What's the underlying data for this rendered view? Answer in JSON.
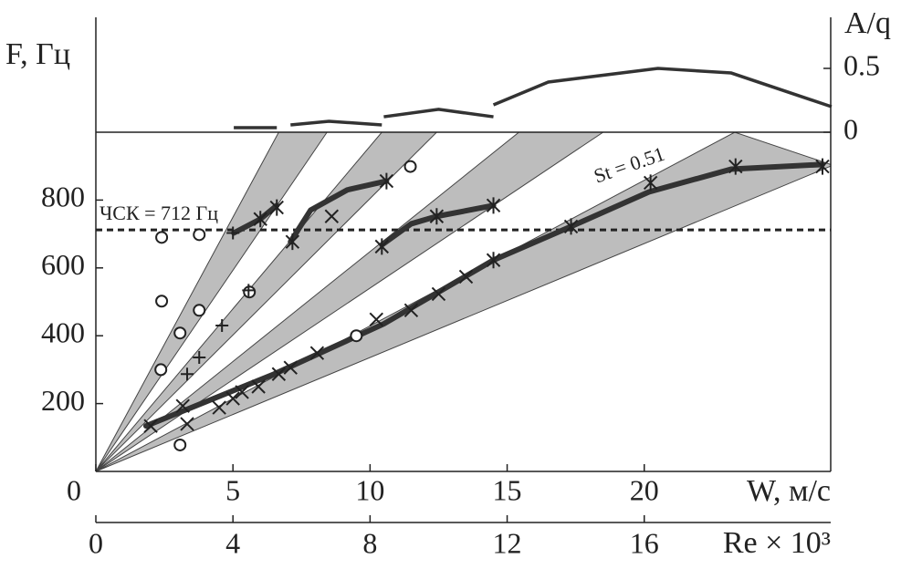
{
  "chart_data": {
    "type": "line",
    "y_label": "F, Гц",
    "x_label": "W, м/с",
    "y2_label": "A/q",
    "x2_label": "Re × 10³",
    "xlim": [
      0,
      26.8
    ],
    "xticks": [
      0,
      5,
      10,
      15,
      20
    ],
    "ylim": [
      0,
      1000
    ],
    "yticks": [
      200,
      400,
      600,
      800
    ],
    "y2lim": [
      0,
      0.9
    ],
    "y2ticks": [
      0,
      0.5
    ],
    "x2lim": [
      0,
      21.44
    ],
    "x2ticks": [
      0,
      4,
      8,
      12,
      16
    ],
    "wedge_color": "#bdbdbd",
    "curve_color": "#333333",
    "threshold": {
      "label": "ЧСК = 712 Гц",
      "value": 712
    },
    "annotation": "St = 0.51",
    "wedges": [
      {
        "x": [
          0,
          6.67,
          8.43
        ],
        "y": [
          0,
          1000,
          1000
        ]
      },
      {
        "x": [
          0,
          10.43,
          12.43
        ],
        "y": [
          0,
          1000,
          1000
        ]
      },
      {
        "x": [
          0,
          15.43,
          18.5
        ],
        "y": [
          0,
          1000,
          1000
        ]
      },
      {
        "x": [
          0,
          23.3,
          26.8,
          26.8
        ],
        "y": [
          0,
          1000,
          905,
          900
        ]
      }
    ],
    "curves": [
      {
        "x": [
          5.03,
          6.0,
          6.6
        ],
        "y": [
          703,
          744,
          784
        ]
      },
      {
        "x": [
          7.1,
          7.83,
          9.17,
          10.6
        ],
        "y": [
          677,
          770,
          830,
          856
        ]
      },
      {
        "x": [
          10.43,
          11.5,
          12.43,
          14.5
        ],
        "y": [
          668,
          730,
          752,
          784
        ]
      },
      {
        "x": [
          1.83,
          6.5,
          10.5,
          14.5,
          17.33,
          20.17,
          23.17,
          26.5
        ],
        "y": [
          134,
          287,
          435,
          623,
          722,
          824,
          891,
          905
        ]
      }
    ],
    "markers": [
      {
        "marker": "o",
        "x": [
          2.4,
          2.4,
          2.37,
          3.07,
          3.77,
          3.77,
          3.07,
          5.6,
          11.47,
          9.5
        ],
        "y": [
          690,
          502,
          300,
          408,
          698,
          475,
          78,
          529,
          899,
          400
        ]
      },
      {
        "marker": "*",
        "x": [
          6.0,
          6.6,
          7.17,
          10.6,
          10.43,
          12.43,
          14.5,
          14.5,
          17.33,
          20.23,
          23.33,
          26.5
        ],
        "y": [
          744,
          778,
          677,
          856,
          663,
          752,
          784,
          623,
          722,
          851,
          899,
          899
        ]
      },
      {
        "marker": "x",
        "x": [
          2.0,
          3.17,
          3.33,
          4.5,
          5.0,
          5.33,
          5.93,
          6.67,
          7.1,
          8.07,
          10.23,
          11.5,
          12.5,
          13.5,
          8.6
        ],
        "y": [
          134,
          193,
          140,
          188,
          215,
          234,
          250,
          287,
          306,
          349,
          448,
          475,
          523,
          574,
          752
        ]
      },
      {
        "marker": "+",
        "x": [
          3.33,
          3.77,
          4.6,
          5.57,
          5.0
        ],
        "y": [
          287,
          336,
          430,
          534,
          703
        ]
      }
    ],
    "aq_curves": [
      {
        "x": [
          5.03,
          6.6
        ],
        "y": [
          0.036,
          0.036
        ]
      },
      {
        "x": [
          7.1,
          8.5,
          10.43
        ],
        "y": [
          0.057,
          0.086,
          0.057
        ]
      },
      {
        "x": [
          10.5,
          12.5,
          14.5
        ],
        "y": [
          0.121,
          0.179,
          0.121
        ]
      },
      {
        "x": [
          14.5,
          16.5,
          20.5,
          23.17,
          26.83
        ],
        "y": [
          0.214,
          0.393,
          0.5,
          0.464,
          0.2
        ]
      }
    ]
  }
}
